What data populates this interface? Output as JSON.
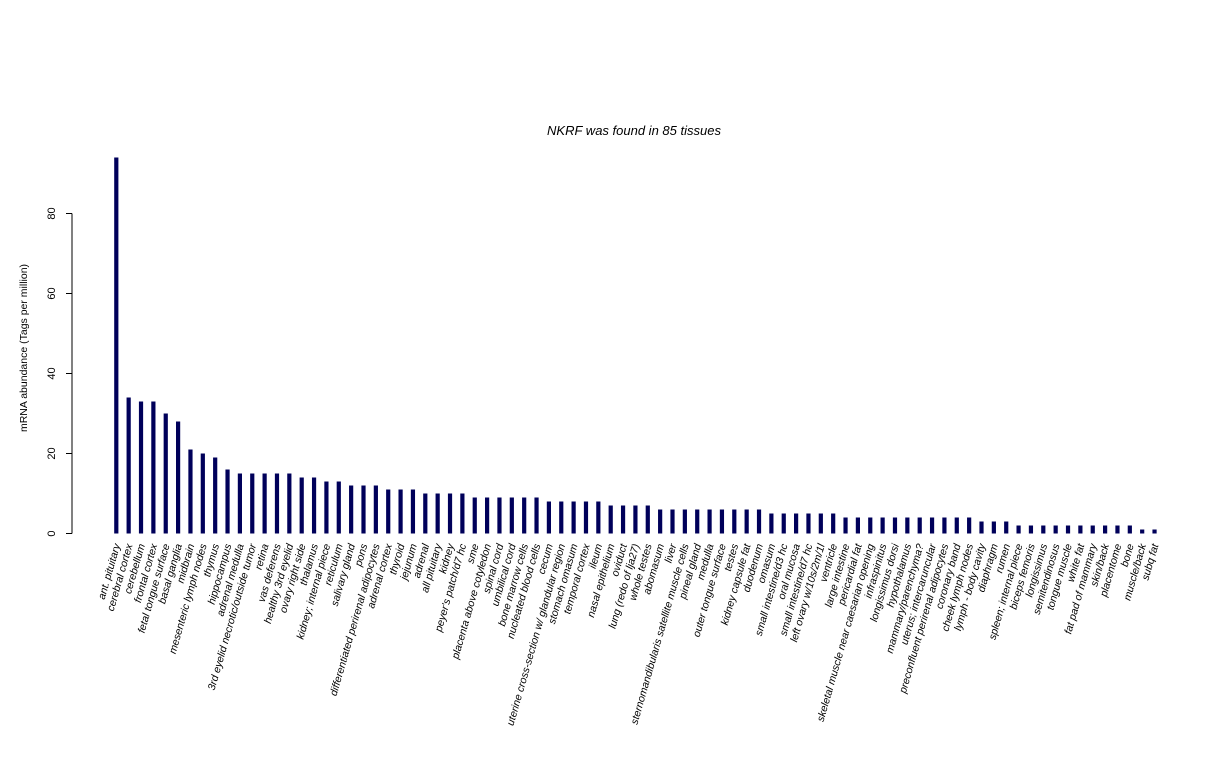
{
  "chart_data": {
    "type": "bar",
    "title": "NKRF  was found in  85  tissues",
    "xlabel": "",
    "ylabel": "mRNA abundance (Tags per million)",
    "ylim": [
      0,
      94
    ],
    "yticks": [
      0,
      20,
      40,
      60,
      80
    ],
    "bar_color": "#00005a",
    "categories": [
      "ant. pituitary",
      "cerebral cortex",
      "cerebellum",
      "frontal cortex",
      "fetal tongue surface",
      "basal ganglia",
      "midbrain",
      "mesenteric lymph nodes",
      "thymus",
      "hippocampus",
      "adrenal medulla",
      "3rd eyelid necrotic/outside tumor",
      "retina",
      "vas deferens",
      "healthy 3rd eyelid",
      "ovary right side",
      "thalamus",
      "kidney; internal piece",
      "reticulum",
      "salivary gland",
      "pons",
      "differentiated perirenal adipocytes",
      "adrenal cortex",
      "thyroid",
      "jejunum",
      "adrenal",
      "all pituitary",
      "kidney",
      "peyer's patch/d7 hc",
      "sme",
      "placenta above cotyledon",
      "spinal cord",
      "umbilical cord",
      "bone marrow cells",
      "nucleated blood cells",
      "cecum",
      "uterine cross-section w/ glandular region",
      "stomach omasum",
      "temporal cortex",
      "ileum",
      "nasal epithelium",
      "oviduct",
      "lung (redo of lja27)",
      "whole testes",
      "abomasum",
      "liver",
      "sternomandibularis satellite muscle cells",
      "pineal gland",
      "medulla",
      "outer tongue surface",
      "testes",
      "kidney capsule fat",
      "duodenum",
      "omasum",
      "small intestine/d3 hc",
      "oral mucosa",
      "small intestine/d7 hc",
      "left ovary w/10s/2m/1l",
      "ventricle",
      "large intestine",
      "pericardial fat",
      "skeletal muscle near caesarian opening",
      "infraspinitus",
      "longissimus dorsi",
      "hypothalamus",
      "mammary/parenchyma?",
      "uterus; intercaruncular",
      "preconfluent perirenal adipocytes",
      "coronary band",
      "cheek lymph nodes",
      "lymph - body cavity",
      "diaphragm",
      "rumen",
      "spleen; internal piece",
      "biceps femoris",
      "longissimus",
      "semitendinosus",
      "tongue muscle",
      "white fat",
      "fat pad of mammary",
      "skin/back",
      "placentome",
      "bone",
      "muscle/back",
      "subq fat"
    ],
    "values": [
      94,
      34,
      33,
      33,
      30,
      28,
      21,
      20,
      19,
      16,
      15,
      15,
      15,
      15,
      15,
      14,
      14,
      13,
      13,
      12,
      12,
      12,
      11,
      11,
      11,
      10,
      10,
      10,
      10,
      9,
      9,
      9,
      9,
      9,
      9,
      8,
      8,
      8,
      8,
      8,
      7,
      7,
      7,
      7,
      6,
      6,
      6,
      6,
      6,
      6,
      6,
      6,
      6,
      5,
      5,
      5,
      5,
      5,
      5,
      4,
      4,
      4,
      4,
      4,
      4,
      4,
      4,
      4,
      4,
      4,
      3,
      3,
      3,
      2,
      2,
      2,
      2,
      2,
      2,
      2,
      2,
      2,
      2,
      1,
      1
    ]
  }
}
